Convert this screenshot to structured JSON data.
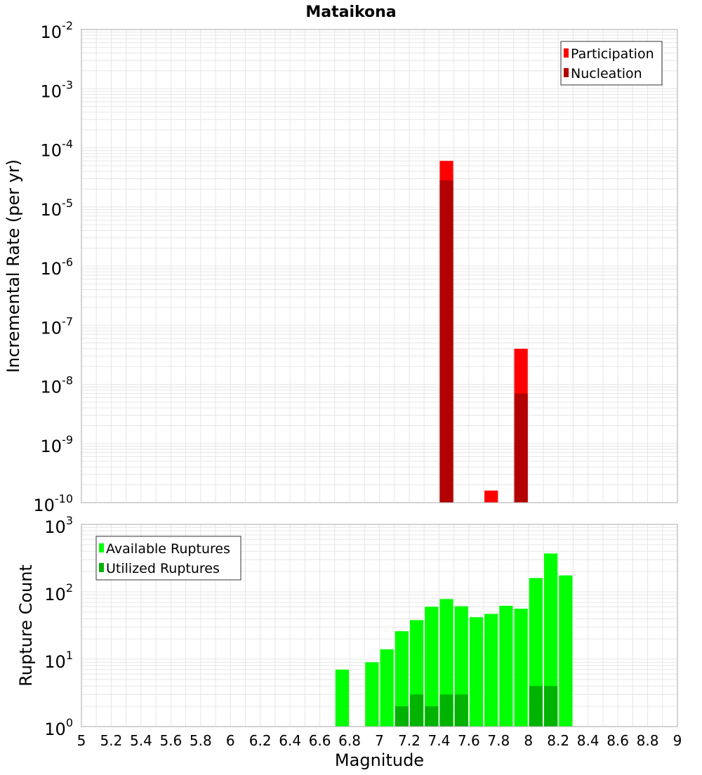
{
  "title": "Mataikona",
  "colors": {
    "participation": "#ff0000",
    "nucleation": "#b30000",
    "available": "#00ff00",
    "utilized": "#00b300",
    "grid": "#e6e6e6",
    "axis_border": "#aaaaaa"
  },
  "chart_data": [
    {
      "type": "bar",
      "name": "rate-panel",
      "title": "Mataikona",
      "ylabel": "Incremental Rate (per yr)",
      "yscale": "log",
      "ylim_exp": [
        -10,
        -2
      ],
      "y_tick_exponents": [
        "-10",
        "-9",
        "-8",
        "-7",
        "-6",
        "-5",
        "-4",
        "-3",
        "-2"
      ],
      "xlim": [
        5,
        9
      ],
      "bar_width": 0.1,
      "legend_position": "top-right",
      "grid": true,
      "series": [
        {
          "name": "Participation",
          "color_key": "participation",
          "points": [
            {
              "x": 7.45,
              "y": 6e-05
            },
            {
              "x": 7.75,
              "y": 1.6e-10
            },
            {
              "x": 7.95,
              "y": 4e-08
            }
          ]
        },
        {
          "name": "Nucleation",
          "color_key": "nucleation",
          "points": [
            {
              "x": 7.45,
              "y": 2.8e-05
            },
            {
              "x": 7.95,
              "y": 7e-09
            }
          ]
        }
      ]
    },
    {
      "type": "bar",
      "name": "count-panel",
      "xlabel": "Magnitude",
      "ylabel": "Rupture Count",
      "yscale": "log",
      "ylim_exp": [
        0,
        3
      ],
      "y_tick_exponents": [
        "0",
        "1",
        "2",
        "3"
      ],
      "xlim": [
        5,
        9
      ],
      "x_ticks": [
        "5",
        "5.2",
        "5.4",
        "5.6",
        "5.8",
        "6",
        "6.2",
        "6.4",
        "6.6",
        "6.8",
        "7",
        "7.2",
        "7.4",
        "7.6",
        "7.8",
        "8",
        "8.2",
        "8.4",
        "8.6",
        "8.8",
        "9"
      ],
      "bar_width": 0.1,
      "legend_position": "top-left",
      "grid": true,
      "series": [
        {
          "name": "Available Ruptures",
          "color_key": "available",
          "points": [
            {
              "x": 6.75,
              "y": 7
            },
            {
              "x": 6.95,
              "y": 9
            },
            {
              "x": 7.05,
              "y": 14
            },
            {
              "x": 7.15,
              "y": 26
            },
            {
              "x": 7.25,
              "y": 38
            },
            {
              "x": 7.35,
              "y": 60
            },
            {
              "x": 7.45,
              "y": 78
            },
            {
              "x": 7.55,
              "y": 61
            },
            {
              "x": 7.65,
              "y": 42
            },
            {
              "x": 7.75,
              "y": 47
            },
            {
              "x": 7.85,
              "y": 62
            },
            {
              "x": 7.95,
              "y": 56
            },
            {
              "x": 8.05,
              "y": 160
            },
            {
              "x": 8.15,
              "y": 370
            },
            {
              "x": 8.25,
              "y": 175
            }
          ]
        },
        {
          "name": "Utilized Ruptures",
          "color_key": "utilized",
          "points": [
            {
              "x": 7.15,
              "y": 2
            },
            {
              "x": 7.25,
              "y": 3
            },
            {
              "x": 7.35,
              "y": 2
            },
            {
              "x": 7.45,
              "y": 3
            },
            {
              "x": 7.55,
              "y": 3
            },
            {
              "x": 7.75,
              "y": 1
            },
            {
              "x": 7.85,
              "y": 1
            },
            {
              "x": 7.95,
              "y": 1
            },
            {
              "x": 8.05,
              "y": 4
            },
            {
              "x": 8.15,
              "y": 4
            }
          ]
        }
      ]
    }
  ]
}
